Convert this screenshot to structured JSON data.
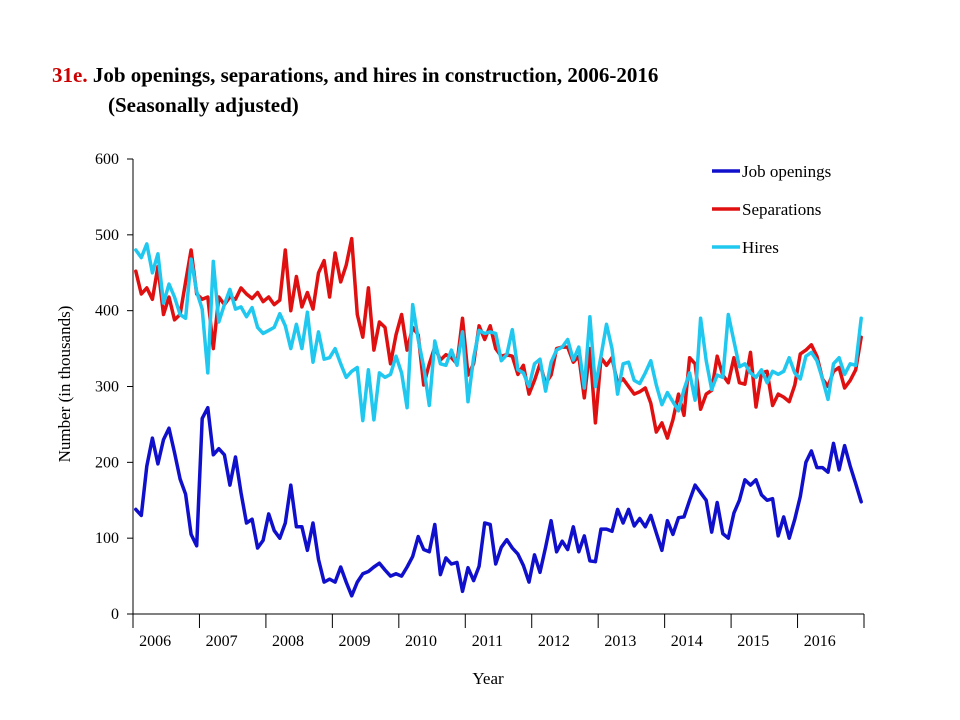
{
  "header": {
    "number": "31e.",
    "title": "Job openings, separations, and hires in construction, 2006-2016",
    "subtitle": "(Seasonally adjusted)"
  },
  "chart_data": {
    "type": "line",
    "title": "Job openings, separations, and hires in construction, 2006-2016",
    "subtitle": "(Seasonally adjusted)",
    "xlabel": "Year",
    "ylabel": "Number (in thousands)",
    "ylim": [
      0,
      600
    ],
    "yticks": [
      0,
      100,
      200,
      300,
      400,
      500,
      600
    ],
    "xlim": [
      0,
      132
    ],
    "year_labels": [
      "2006",
      "2007",
      "2008",
      "2009",
      "2010",
      "2011",
      "2012",
      "2013",
      "2014",
      "2015",
      "2016"
    ],
    "grid": false,
    "legend_position": "top-right",
    "series": [
      {
        "name": "Job openings",
        "color": "#1010cc",
        "values": [
          138,
          130,
          195,
          232,
          198,
          230,
          245,
          213,
          178,
          158,
          105,
          90,
          258,
          272,
          210,
          218,
          210,
          170,
          207,
          160,
          120,
          125,
          87,
          97,
          132,
          110,
          100,
          120,
          170,
          115,
          115,
          84,
          120,
          72,
          42,
          46,
          42,
          62,
          42,
          24,
          42,
          53,
          56,
          62,
          67,
          58,
          50,
          53,
          50,
          62,
          76,
          102,
          85,
          82,
          118,
          52,
          74,
          66,
          68,
          30,
          61,
          44,
          63,
          120,
          118,
          66,
          88,
          98,
          87,
          79,
          64,
          42,
          78,
          55,
          88,
          123,
          82,
          96,
          85,
          115,
          82,
          103,
          70,
          69,
          112,
          112,
          109,
          138,
          120,
          138,
          116,
          126,
          115,
          130,
          107,
          84,
          123,
          105,
          127,
          128,
          150,
          170,
          160,
          150,
          108,
          147,
          106,
          100,
          133,
          150,
          177,
          170,
          177,
          157,
          150,
          152,
          103,
          128,
          100,
          125,
          155,
          200,
          215,
          193,
          193,
          187,
          225,
          190,
          222,
          195,
          172,
          148
        ]
      },
      {
        "name": "Separations",
        "color": "#e01010",
        "values": [
          452,
          422,
          430,
          415,
          458,
          395,
          418,
          388,
          395,
          438,
          480,
          422,
          415,
          418,
          350,
          418,
          408,
          418,
          415,
          430,
          422,
          416,
          424,
          412,
          418,
          408,
          414,
          480,
          400,
          445,
          405,
          424,
          402,
          450,
          466,
          418,
          476,
          438,
          460,
          495,
          395,
          365,
          430,
          348,
          385,
          378,
          330,
          368,
          395,
          348,
          378,
          368,
          302,
          330,
          352,
          335,
          342,
          338,
          330,
          390,
          315,
          330,
          380,
          362,
          380,
          350,
          340,
          342,
          340,
          316,
          328,
          290,
          308,
          330,
          304,
          315,
          350,
          352,
          352,
          332,
          340,
          285,
          350,
          252,
          338,
          328,
          338,
          304,
          310,
          300,
          290,
          293,
          298,
          278,
          240,
          252,
          232,
          256,
          290,
          262,
          338,
          330,
          270,
          290,
          295,
          340,
          315,
          305,
          338,
          305,
          303,
          345,
          273,
          318,
          320,
          275,
          290,
          286,
          280,
          302,
          343,
          348,
          355,
          340,
          310,
          300,
          320,
          325,
          298,
          308,
          322,
          365
        ]
      },
      {
        "name": "Hires",
        "color": "#20c8f0",
        "values": [
          480,
          470,
          488,
          450,
          475,
          410,
          435,
          418,
          395,
          390,
          468,
          425,
          402,
          318,
          465,
          385,
          408,
          428,
          402,
          405,
          392,
          404,
          378,
          370,
          374,
          378,
          396,
          380,
          350,
          382,
          350,
          398,
          332,
          372,
          336,
          338,
          350,
          330,
          312,
          320,
          325,
          255,
          322,
          256,
          318,
          312,
          316,
          340,
          318,
          272,
          408,
          362,
          326,
          275,
          360,
          330,
          328,
          348,
          328,
          372,
          280,
          338,
          374,
          370,
          372,
          370,
          334,
          342,
          375,
          322,
          318,
          300,
          330,
          336,
          294,
          332,
          348,
          352,
          362,
          335,
          352,
          298,
          392,
          300,
          340,
          382,
          350,
          290,
          330,
          332,
          308,
          304,
          318,
          334,
          302,
          276,
          292,
          280,
          268,
          296,
          318,
          282,
          390,
          334,
          296,
          315,
          312,
          395,
          360,
          326,
          330,
          318,
          312,
          322,
          305,
          320,
          316,
          320,
          338,
          318,
          310,
          340,
          345,
          334,
          310,
          283,
          330,
          338,
          316,
          330,
          328,
          390
        ]
      }
    ]
  }
}
